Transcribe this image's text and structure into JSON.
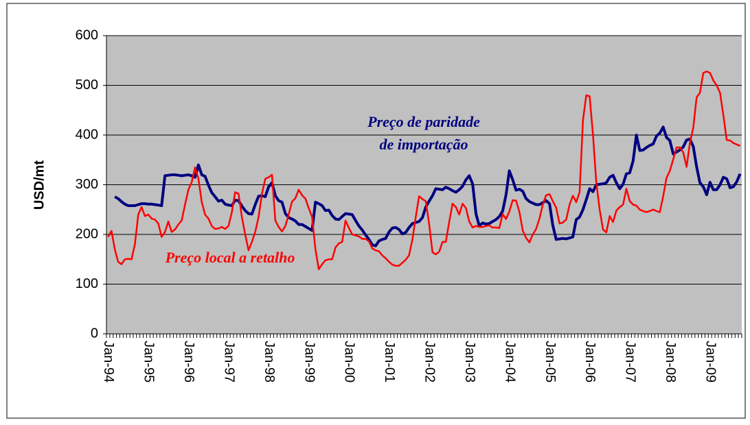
{
  "chart_data": {
    "type": "line",
    "ylabel": "USD/mt",
    "ylim": [
      0,
      600
    ],
    "yticks": [
      0,
      100,
      200,
      300,
      400,
      500,
      600
    ],
    "grid": true,
    "categories": [
      "Jan-94",
      null,
      null,
      null,
      null,
      null,
      null,
      null,
      null,
      null,
      null,
      null,
      "Jan-95",
      null,
      null,
      null,
      null,
      null,
      null,
      null,
      null,
      null,
      null,
      null,
      "Jan-96",
      null,
      null,
      null,
      null,
      null,
      null,
      null,
      null,
      null,
      null,
      null,
      "Jan-97",
      null,
      null,
      null,
      null,
      null,
      null,
      null,
      null,
      null,
      null,
      null,
      "Jan-98",
      null,
      null,
      null,
      null,
      null,
      null,
      null,
      null,
      null,
      null,
      null,
      "Jan-99",
      null,
      null,
      null,
      null,
      null,
      null,
      null,
      null,
      null,
      null,
      null,
      "Jan-00",
      null,
      null,
      null,
      null,
      null,
      null,
      null,
      null,
      null,
      null,
      null,
      "Jan-01",
      null,
      null,
      null,
      null,
      null,
      null,
      null,
      null,
      null,
      null,
      null,
      "Jan-02",
      null,
      null,
      null,
      null,
      null,
      null,
      null,
      null,
      null,
      null,
      null,
      "Jan-03",
      null,
      null,
      null,
      null,
      null,
      null,
      null,
      null,
      null,
      null,
      null,
      "Jan-04",
      null,
      null,
      null,
      null,
      null,
      null,
      null,
      null,
      null,
      null,
      null,
      "Jan-05",
      null,
      null,
      null,
      null,
      null,
      null,
      null,
      null,
      null,
      null,
      null,
      "Jan-06",
      null,
      null,
      null,
      null,
      null,
      null,
      null,
      null,
      null,
      null,
      null,
      "Jan-07",
      null,
      null,
      null,
      null,
      null,
      null,
      null,
      null,
      null,
      null,
      null,
      "Jan-08",
      null,
      null,
      null,
      null,
      null,
      null,
      null,
      null,
      null,
      null,
      null,
      "Jan-09",
      null,
      null,
      null,
      null,
      null,
      null,
      null,
      null,
      null
    ],
    "series": [
      {
        "color": "#000080",
        "width": 4,
        "values": [
          null,
          null,
          276,
          272,
          266,
          261,
          258,
          258,
          258,
          260,
          262,
          262,
          261,
          261,
          260,
          259,
          258,
          318,
          319,
          320,
          320,
          319,
          318,
          319,
          320,
          318,
          315,
          340,
          320,
          317,
          299,
          284,
          276,
          267,
          269,
          261,
          259,
          258,
          269,
          268,
          257,
          248,
          242,
          241,
          260,
          277,
          278,
          276,
          296,
          304,
          278,
          268,
          265,
          242,
          234,
          231,
          227,
          220,
          220,
          216,
          212,
          208,
          265,
          262,
          258,
          248,
          249,
          238,
          231,
          230,
          236,
          242,
          241,
          240,
          228,
          217,
          209,
          199,
          190,
          179,
          177,
          187,
          190,
          192,
          205,
          213,
          214,
          210,
          201,
          204,
          214,
          222,
          224,
          226,
          234,
          255,
          267,
          278,
          292,
          291,
          290,
          295,
          292,
          288,
          285,
          290,
          297,
          310,
          318,
          302,
          242,
          217,
          223,
          221,
          222,
          226,
          230,
          236,
          247,
          280,
          328,
          310,
          289,
          291,
          287,
          272,
          266,
          263,
          260,
          260,
          264,
          268,
          262,
          218,
          190,
          191,
          192,
          191,
          193,
          195,
          230,
          235,
          250,
          270,
          292,
          286,
          300,
          301,
          302,
          304,
          315,
          319,
          304,
          292,
          301,
          322,
          324,
          348,
          400,
          369,
          370,
          375,
          379,
          382,
          398,
          404,
          416,
          395,
          389,
          362,
          366,
          370,
          376,
          390,
          392,
          377,
          336,
          304,
          296,
          280,
          305,
          290,
          290,
          300,
          315,
          312,
          294,
          296,
          306,
          322
        ]
      },
      {
        "color": "#ff0000",
        "width": 2.5,
        "values": [
          195,
          207,
          170,
          145,
          140,
          150,
          151,
          150,
          180,
          240,
          255,
          237,
          240,
          232,
          230,
          222,
          195,
          205,
          226,
          205,
          210,
          220,
          228,
          260,
          290,
          305,
          335,
          312,
          265,
          240,
          232,
          217,
          211,
          212,
          215,
          211,
          217,
          245,
          285,
          282,
          235,
          200,
          168,
          185,
          205,
          235,
          282,
          312,
          315,
          320,
          228,
          215,
          206,
          217,
          240,
          266,
          273,
          290,
          279,
          272,
          253,
          235,
          170,
          130,
          140,
          148,
          150,
          150,
          174,
          182,
          185,
          228,
          213,
          200,
          198,
          196,
          191,
          191,
          186,
          172,
          168,
          166,
          158,
          152,
          145,
          139,
          137,
          137,
          143,
          149,
          158,
          190,
          235,
          277,
          271,
          267,
          221,
          164,
          160,
          165,
          185,
          185,
          225,
          262,
          255,
          240,
          262,
          253,
          226,
          214,
          217,
          215,
          215,
          217,
          218,
          214,
          214,
          213,
          241,
          231,
          246,
          269,
          268,
          245,
          208,
          193,
          184,
          200,
          211,
          232,
          260,
          279,
          281,
          267,
          254,
          222,
          224,
          230,
          260,
          278,
          265,
          285,
          430,
          480,
          478,
          400,
          305,
          250,
          210,
          204,
          237,
          225,
          248,
          255,
          260,
          292,
          267,
          260,
          258,
          250,
          247,
          245,
          247,
          250,
          247,
          245,
          277,
          314,
          328,
          351,
          375,
          375,
          365,
          336,
          384,
          415,
          476,
          485,
          525,
          528,
          525,
          510,
          500,
          485,
          440,
          390,
          389,
          384,
          381,
          378
        ]
      }
    ],
    "annotations": [
      {
        "lines": [
          "Preço de paridade",
          "de importação"
        ],
        "color": "#000080"
      },
      {
        "lines": [
          "Preço local a retalho"
        ],
        "color": "#ff0000"
      }
    ]
  }
}
